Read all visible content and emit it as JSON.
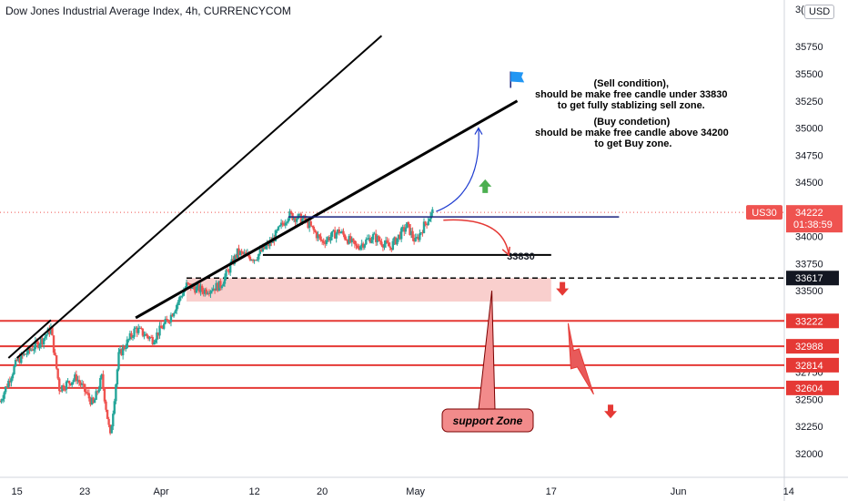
{
  "header": {
    "title": "Dow Jones Industrial Average Index, 4h, CURRENCYCOM",
    "currency_button": "USD",
    "axis_top_fragment": "3("
  },
  "chart_data": {
    "type": "candlestick",
    "title": "Dow Jones Industrial Average Index, 4h, CURRENCYCOM",
    "ylim": [
      31780,
      36180
    ],
    "y_ticks": [
      32000,
      32250,
      32500,
      32750,
      33000,
      33250,
      33500,
      33750,
      34000,
      34250,
      34500,
      34750,
      35000,
      35250,
      35500,
      35750
    ],
    "y_tick_labels": [
      "32000",
      "32250",
      "32500",
      "32750",
      "33000",
      "33250",
      "33500",
      "33750",
      "34000",
      "34250",
      "34500",
      "34750",
      "35000",
      "35250",
      "35500",
      "35750"
    ],
    "x_tick_labels": [
      "15",
      "23",
      "Apr",
      "12",
      "20",
      "May",
      "17",
      "Jun",
      "14"
    ],
    "x_tick_dates": [
      "Mar 15",
      "Mar 23",
      "Apr 1",
      "Apr 12",
      "Apr 20",
      "May 1",
      "May 17",
      "Jun 1",
      "Jun 14"
    ],
    "x_range": [
      "Mar 13",
      "Jun 21"
    ],
    "price_series": [
      {
        "date": "Mar 13",
        "close": 32480
      },
      {
        "date": "Mar 15",
        "close": 32850
      },
      {
        "date": "Mar 18",
        "close": 33050
      },
      {
        "date": "Mar 19",
        "close": 33150
      },
      {
        "date": "Mar 20",
        "close": 32600
      },
      {
        "date": "Mar 22",
        "close": 32700
      },
      {
        "date": "Mar 24",
        "close": 32450
      },
      {
        "date": "Mar 25",
        "close": 32700
      },
      {
        "date": "Mar 26",
        "close": 32150
      },
      {
        "date": "Mar 27",
        "close": 32900
      },
      {
        "date": "Mar 29",
        "close": 33150
      },
      {
        "date": "Mar 31",
        "close": 33050
      },
      {
        "date": "Apr 2",
        "close": 33250
      },
      {
        "date": "Apr 4",
        "close": 33550
      },
      {
        "date": "Apr 6",
        "close": 33500
      },
      {
        "date": "Apr 8",
        "close": 33550
      },
      {
        "date": "Apr 10",
        "close": 33850
      },
      {
        "date": "Apr 12",
        "close": 33800
      },
      {
        "date": "Apr 14",
        "close": 33950
      },
      {
        "date": "Apr 16",
        "close": 34200
      },
      {
        "date": "Apr 18",
        "close": 34150
      },
      {
        "date": "Apr 20",
        "close": 33950
      },
      {
        "date": "Apr 22",
        "close": 34050
      },
      {
        "date": "Apr 24",
        "close": 33900
      },
      {
        "date": "Apr 26",
        "close": 34000
      },
      {
        "date": "Apr 28",
        "close": 33900
      },
      {
        "date": "Apr 30",
        "close": 34100
      },
      {
        "date": "May 1",
        "close": 33950
      },
      {
        "date": "May 2",
        "close": 34100
      },
      {
        "date": "May 3",
        "close": 34222
      }
    ],
    "annotations": {
      "sell_note": "(Sell condition),\nshould be make free candle under 33830\nto get fully stablizing sell zone.",
      "buy_note": "(Buy condetion)\nshould be make free candle above 34200\n to get Buy zone.",
      "level_label": "33830",
      "support_label": "support Zone"
    },
    "levels": {
      "resistance_blue": 34180,
      "level_33830": 33830,
      "dashed_33617": 33617,
      "support_zone": [
        33400,
        33617
      ],
      "red_lines": [
        33222,
        32988,
        32814,
        32604
      ]
    },
    "price_badges": [
      {
        "text": "33222",
        "value": 33222
      },
      {
        "text": "32988",
        "value": 32988
      },
      {
        "text": "32814",
        "value": 32814
      },
      {
        "text": "32604",
        "value": 32604
      }
    ],
    "dashed_badge": {
      "text": "33617",
      "value": 33617
    },
    "current_price": {
      "symbol": "US30",
      "value": 34222,
      "value_text": "34222",
      "countdown": "01:38:59"
    },
    "colors": {
      "up": "#26a69a",
      "down": "#ef5350",
      "red_line": "#e53935",
      "support_fill": "#f8c7c4",
      "blue_line": "#1a237e",
      "arrow_green": "#4caf50",
      "arrow_red": "#e53935",
      "flag": "#2196f3"
    }
  }
}
